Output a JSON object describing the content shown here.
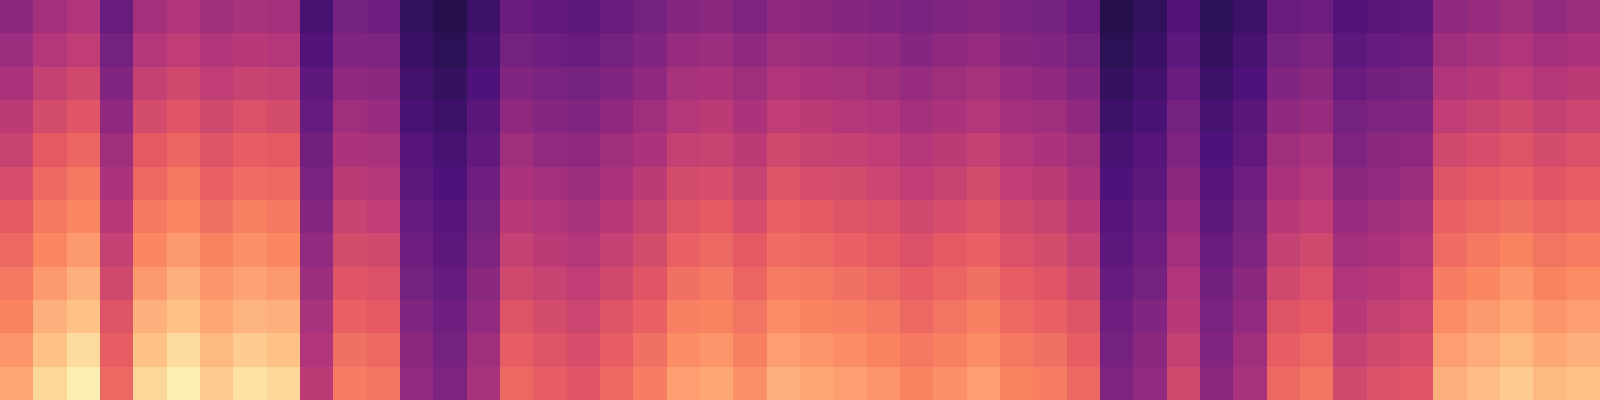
{
  "chart_data": {
    "type": "heatmap",
    "tick_labels": false,
    "zlim": [
      0,
      100
    ],
    "cells": [
      [
        82,
        92,
        97,
        67,
        92,
        97,
        90,
        94,
        92,
        52,
        72,
        70,
        42,
        37,
        47,
        67,
        64,
        62,
        67,
        72,
        80,
        82,
        77,
        84,
        82,
        80,
        78,
        74,
        77,
        80,
        74,
        72,
        67,
        37,
        42,
        57,
        40,
        47,
        67,
        70,
        57,
        60,
        62,
        84,
        87,
        90,
        86,
        88
      ],
      [
        78,
        88,
        93,
        64,
        88,
        93,
        86,
        90,
        88,
        49,
        69,
        67,
        40,
        35,
        45,
        64,
        61,
        59,
        64,
        69,
        76,
        78,
        73,
        80,
        78,
        76,
        74,
        71,
        73,
        76,
        71,
        69,
        64,
        35,
        40,
        54,
        38,
        45,
        64,
        67,
        54,
        57,
        59,
        80,
        83,
        86,
        82,
        84
      ],
      [
        74,
        84,
        88,
        61,
        84,
        88,
        82,
        85,
        84,
        47,
        65,
        63,
        38,
        33,
        42,
        61,
        58,
        56,
        61,
        65,
        73,
        74,
        70,
        76,
        74,
        73,
        71,
        67,
        70,
        73,
        67,
        65,
        61,
        33,
        38,
        51,
        36,
        42,
        61,
        63,
        51,
        54,
        56,
        76,
        79,
        82,
        78,
        80
      ],
      [
        71,
        79,
        84,
        57,
        79,
        84,
        78,
        81,
        79,
        44,
        62,
        60,
        35,
        31,
        40,
        57,
        55,
        53,
        57,
        62,
        69,
        71,
        66,
        72,
        71,
        69,
        67,
        64,
        66,
        69,
        64,
        62,
        57,
        31,
        35,
        49,
        34,
        40,
        57,
        60,
        49,
        51,
        53,
        72,
        75,
        78,
        74,
        76
      ],
      [
        67,
        75,
        79,
        54,
        75,
        79,
        74,
        77,
        75,
        42,
        58,
        57,
        33,
        29,
        37,
        54,
        52,
        50,
        54,
        58,
        65,
        67,
        63,
        68,
        67,
        65,
        63,
        60,
        63,
        65,
        60,
        58,
        54,
        29,
        33,
        46,
        32,
        37,
        54,
        57,
        46,
        48,
        50,
        68,
        71,
        74,
        70,
        72
      ],
      [
        63,
        71,
        75,
        51,
        71,
        75,
        69,
        73,
        71,
        39,
        55,
        53,
        31,
        27,
        35,
        51,
        49,
        47,
        51,
        55,
        61,
        63,
        59,
        65,
        63,
        61,
        60,
        57,
        59,
        61,
        57,
        55,
        51,
        27,
        31,
        43,
        29,
        35,
        51,
        53,
        43,
        45,
        47,
        65,
        67,
        69,
        66,
        68
      ],
      [
        59,
        67,
        71,
        48,
        67,
        71,
        65,
        68,
        67,
        36,
        52,
        50,
        29,
        25,
        33,
        48,
        46,
        44,
        48,
        52,
        58,
        59,
        55,
        61,
        59,
        58,
        56,
        53,
        55,
        58,
        53,
        52,
        48,
        25,
        29,
        40,
        27,
        33,
        48,
        50,
        40,
        42,
        44,
        61,
        63,
        65,
        62,
        64
      ],
      [
        55,
        63,
        66,
        45,
        63,
        66,
        61,
        64,
        63,
        34,
        48,
        47,
        27,
        23,
        30,
        45,
        42,
        41,
        45,
        48,
        54,
        55,
        52,
        57,
        55,
        54,
        53,
        50,
        52,
        54,
        50,
        48,
        45,
        23,
        27,
        37,
        25,
        30,
        45,
        47,
        37,
        40,
        41,
        57,
        59,
        61,
        58,
        60
      ],
      [
        52,
        58,
        62,
        41,
        58,
        62,
        57,
        60,
        58,
        31,
        45,
        43,
        24,
        21,
        28,
        41,
        39,
        38,
        41,
        45,
        50,
        52,
        48,
        53,
        52,
        50,
        49,
        46,
        48,
        50,
        46,
        45,
        41,
        21,
        24,
        35,
        23,
        28,
        41,
        43,
        35,
        37,
        38,
        53,
        55,
        57,
        54,
        56
      ],
      [
        48,
        54,
        57,
        38,
        54,
        57,
        53,
        55,
        54,
        29,
        41,
        40,
        22,
        19,
        25,
        38,
        36,
        35,
        38,
        41,
        47,
        48,
        45,
        49,
        48,
        47,
        45,
        43,
        45,
        47,
        43,
        41,
        38,
        19,
        22,
        32,
        21,
        25,
        38,
        40,
        32,
        34,
        35,
        49,
        51,
        53,
        50,
        52
      ],
      [
        44,
        50,
        53,
        35,
        50,
        53,
        49,
        51,
        50,
        26,
        38,
        37,
        20,
        17,
        23,
        35,
        33,
        32,
        35,
        38,
        43,
        44,
        41,
        45,
        44,
        43,
        42,
        39,
        41,
        43,
        39,
        38,
        35,
        17,
        20,
        29,
        19,
        23,
        35,
        37,
        29,
        31,
        32,
        45,
        47,
        49,
        46,
        48
      ],
      [
        40,
        46,
        49,
        32,
        46,
        49,
        45,
        47,
        46,
        23,
        35,
        33,
        18,
        15,
        21,
        32,
        30,
        29,
        32,
        35,
        39,
        40,
        37,
        41,
        40,
        39,
        38,
        36,
        37,
        39,
        36,
        35,
        32,
        15,
        18,
        26,
        17,
        21,
        32,
        33,
        26,
        28,
        29,
        41,
        43,
        45,
        42,
        44
      ]
    ]
  }
}
